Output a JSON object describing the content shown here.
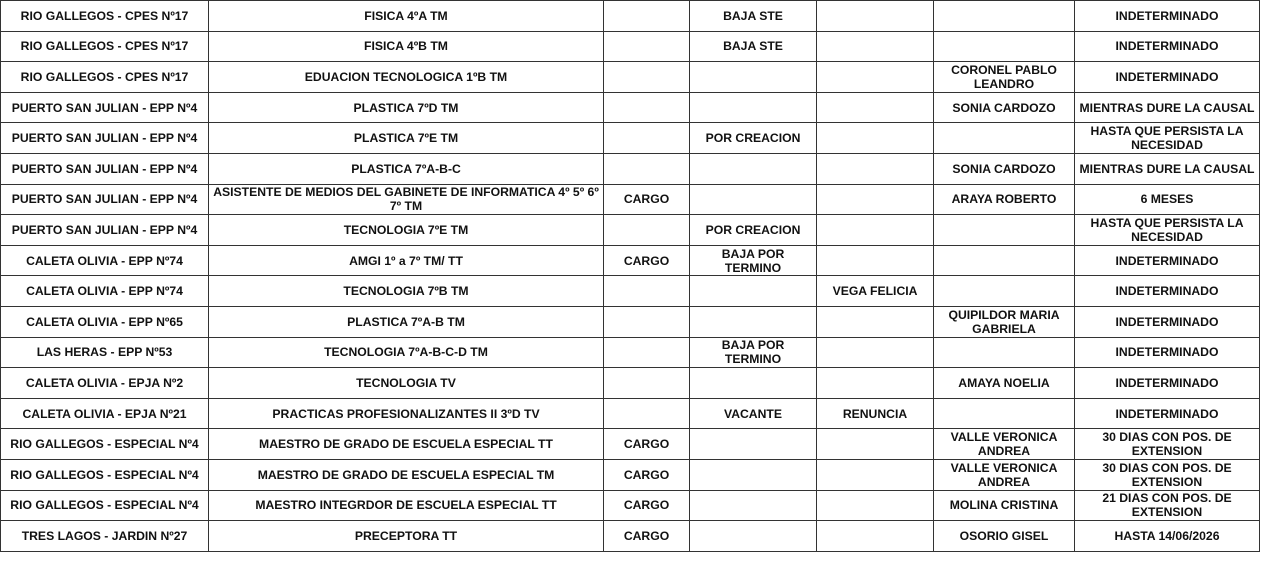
{
  "rows": [
    [
      "RIO GALLEGOS - CPES Nº17",
      "FISICA 4ºA TM",
      "",
      "BAJA STE",
      "",
      "",
      "INDETERMINADO"
    ],
    [
      "RIO GALLEGOS - CPES Nº17",
      "FISICA 4ºB TM",
      "",
      "BAJA STE",
      "",
      "",
      "INDETERMINADO"
    ],
    [
      "RIO GALLEGOS - CPES Nº17",
      "EDUACION TECNOLOGICA 1ºB TM",
      "",
      "",
      "",
      "CORONEL PABLO LEANDRO",
      "INDETERMINADO"
    ],
    [
      "PUERTO SAN JULIAN - EPP Nº4",
      "PLASTICA 7ºD TM",
      "",
      "",
      "",
      "SONIA CARDOZO",
      "MIENTRAS DURE LA CAUSAL"
    ],
    [
      "PUERTO SAN JULIAN - EPP Nº4",
      "PLASTICA 7ºE TM",
      "",
      "POR CREACION",
      "",
      "",
      "HASTA QUE PERSISTA LA NECESIDAD"
    ],
    [
      "PUERTO SAN JULIAN - EPP Nº4",
      "PLASTICA 7ºA-B-C",
      "",
      "",
      "",
      "SONIA CARDOZO",
      "MIENTRAS DURE LA CAUSAL"
    ],
    [
      "PUERTO SAN JULIAN - EPP Nº4",
      "ASISTENTE DE MEDIOS DEL GABINETE DE INFORMATICA 4º 5º 6º 7º TM",
      "CARGO",
      "",
      "",
      "ARAYA ROBERTO",
      "6 MESES"
    ],
    [
      "PUERTO SAN JULIAN - EPP Nº4",
      "TECNOLOGIA 7ºE TM",
      "",
      "POR CREACION",
      "",
      "",
      "HASTA QUE PERSISTA LA NECESIDAD"
    ],
    [
      "CALETA OLIVIA - EPP Nº74",
      "AMGI 1º a 7º TM/ TT",
      "CARGO",
      "BAJA POR TERMINO",
      "",
      "",
      "INDETERMINADO"
    ],
    [
      "CALETA OLIVIA - EPP Nº74",
      "TECNOLOGIA 7ºB TM",
      "",
      "",
      "VEGA FELICIA",
      "",
      "INDETERMINADO"
    ],
    [
      "CALETA OLIVIA - EPP Nº65",
      "PLASTICA 7ºA-B TM",
      "",
      "",
      "",
      "QUIPILDOR MARIA GABRIELA",
      "INDETERMINADO"
    ],
    [
      "LAS HERAS - EPP Nº53",
      "TECNOLOGIA 7ºA-B-C-D TM",
      "",
      "BAJA POR TERMINO",
      "",
      "",
      "INDETERMINADO"
    ],
    [
      "CALETA OLIVIA - EPJA Nº2",
      "TECNOLOGIA TV",
      "",
      "",
      "",
      "AMAYA NOELIA",
      "INDETERMINADO"
    ],
    [
      "CALETA OLIVIA - EPJA Nº21",
      "PRACTICAS PROFESIONALIZANTES II 3ºD TV",
      "",
      "VACANTE",
      "RENUNCIA",
      "",
      "INDETERMINADO"
    ],
    [
      "RIO GALLEGOS - ESPECIAL Nº4",
      "MAESTRO DE GRADO DE ESCUELA ESPECIAL TT",
      "CARGO",
      "",
      "",
      "VALLE VERONICA ANDREA",
      "30 DIAS CON POS. DE EXTENSION"
    ],
    [
      "RIO GALLEGOS - ESPECIAL Nº4",
      "MAESTRO DE GRADO DE ESCUELA ESPECIAL TM",
      "CARGO",
      "",
      "",
      "VALLE VERONICA ANDREA",
      "30 DIAS CON POS. DE EXTENSION"
    ],
    [
      "RIO GALLEGOS - ESPECIAL Nº4",
      "MAESTRO INTEGRDOR DE ESCUELA ESPECIAL TT",
      "CARGO",
      "",
      "",
      "MOLINA CRISTINA",
      "21 DIAS CON POS. DE EXTENSION"
    ],
    [
      "TRES LAGOS - JARDIN Nº27",
      "PRECEPTORA TT",
      "CARGO",
      "",
      "",
      "OSORIO GISEL",
      "HASTA 14/06/2026"
    ]
  ]
}
